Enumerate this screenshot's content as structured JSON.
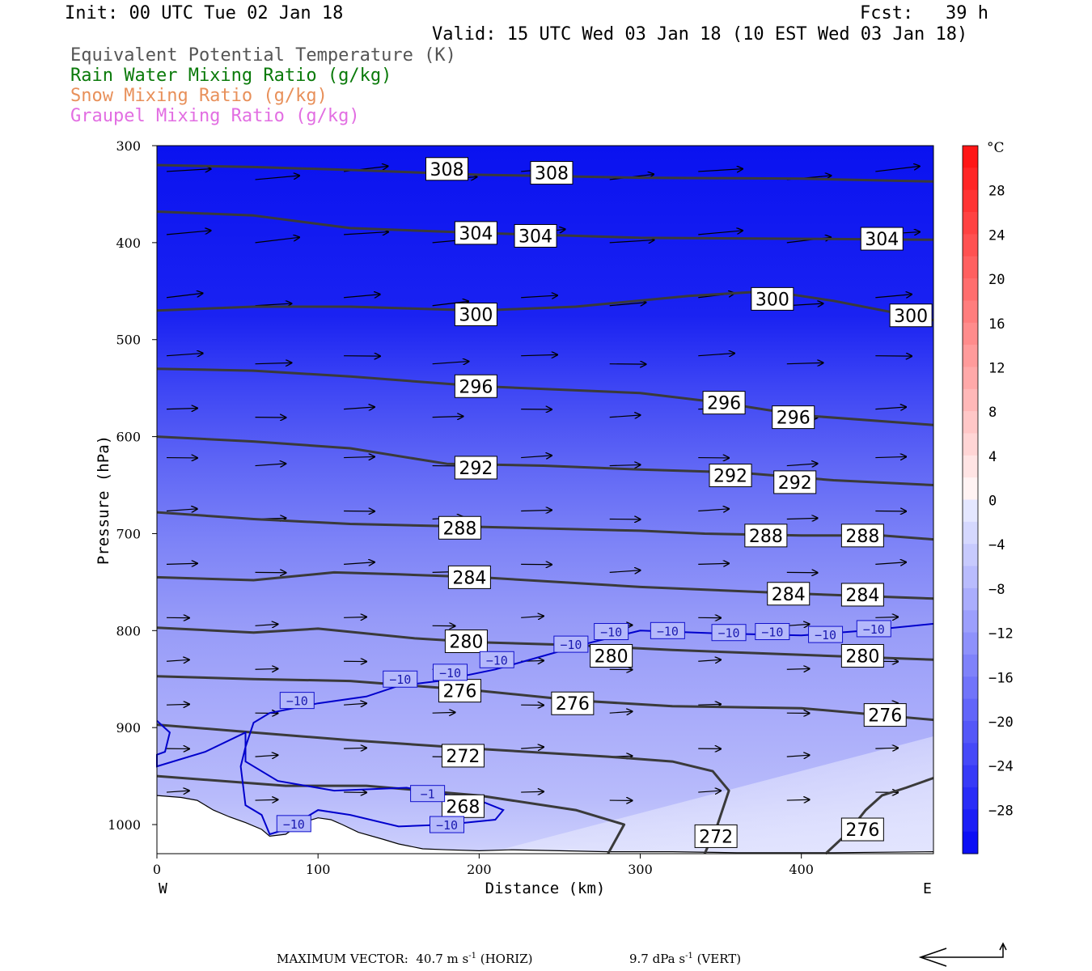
{
  "header": {
    "init": "Init: 00 UTC Tue 02 Jan 18",
    "fcst": "Fcst:   39 h",
    "valid": "Valid: 15 UTC Wed 03 Jan 18 (10 EST Wed 03 Jan 18)"
  },
  "fields": [
    {
      "label": "Equivalent Potential Temperature (K)",
      "color": "#555555"
    },
    {
      "label": "Rain Water Mixing Ratio (g/kg)",
      "color": "#0a7a0a"
    },
    {
      "label": "Snow Mixing Ratio (g/kg)",
      "color": "#e8905a"
    },
    {
      "label": "Graupel Mixing Ratio (g/kg)",
      "color": "#e26ee2"
    }
  ],
  "chart_data": {
    "type": "cross-section",
    "xlabel": "Distance (km)",
    "ylabel": "Pressure (hPa)",
    "xlim": [
      0,
      482
    ],
    "ylim": [
      1030,
      300
    ],
    "y_log_scale": false,
    "x_ticks": [
      0,
      100,
      200,
      300,
      400
    ],
    "y_ticks": [
      300,
      400,
      500,
      600,
      700,
      800,
      900,
      1000
    ],
    "west_label": "W",
    "east_label": "E",
    "colorbar": {
      "unit": "°C",
      "labels": [
        28,
        24,
        20,
        16,
        12,
        8,
        4,
        0,
        -4,
        -8,
        -12,
        -16,
        -20,
        -24,
        -28
      ],
      "range": [
        -32,
        32
      ],
      "fill_note": "temperature shading"
    },
    "theta_e_contours": [
      {
        "value": 308,
        "points": [
          [
            0,
            320
          ],
          [
            60,
            322
          ],
          [
            120,
            325
          ],
          [
            200,
            330
          ],
          [
            300,
            333
          ],
          [
            400,
            334
          ],
          [
            482,
            337
          ]
        ]
      },
      {
        "value": 304,
        "points": [
          [
            0,
            368
          ],
          [
            60,
            372
          ],
          [
            120,
            385
          ],
          [
            200,
            390
          ],
          [
            300,
            395
          ],
          [
            400,
            396
          ],
          [
            482,
            397
          ]
        ]
      },
      {
        "value": 300,
        "points": [
          [
            0,
            470
          ],
          [
            60,
            466
          ],
          [
            120,
            466
          ],
          [
            200,
            470
          ],
          [
            260,
            466
          ],
          [
            330,
            455
          ],
          [
            380,
            450
          ],
          [
            420,
            460
          ],
          [
            482,
            480
          ]
        ]
      },
      {
        "value": 296,
        "points": [
          [
            0,
            530
          ],
          [
            60,
            532
          ],
          [
            120,
            538
          ],
          [
            200,
            548
          ],
          [
            300,
            555
          ],
          [
            350,
            565
          ],
          [
            400,
            578
          ],
          [
            482,
            588
          ]
        ]
      },
      {
        "value": 292,
        "points": [
          [
            0,
            600
          ],
          [
            60,
            605
          ],
          [
            120,
            612
          ],
          [
            180,
            628
          ],
          [
            240,
            630
          ],
          [
            300,
            634
          ],
          [
            360,
            637
          ],
          [
            420,
            645
          ],
          [
            482,
            650
          ]
        ]
      },
      {
        "value": 288,
        "points": [
          [
            0,
            678
          ],
          [
            60,
            685
          ],
          [
            120,
            690
          ],
          [
            200,
            693
          ],
          [
            300,
            697
          ],
          [
            340,
            700
          ],
          [
            400,
            702
          ],
          [
            450,
            702
          ],
          [
            482,
            706
          ]
        ]
      },
      {
        "value": 284,
        "points": [
          [
            0,
            745
          ],
          [
            60,
            748
          ],
          [
            110,
            740
          ],
          [
            150,
            742
          ],
          [
            200,
            745
          ],
          [
            300,
            755
          ],
          [
            400,
            762
          ],
          [
            482,
            767
          ]
        ]
      },
      {
        "value": 280,
        "points": [
          [
            0,
            797
          ],
          [
            60,
            802
          ],
          [
            100,
            798
          ],
          [
            160,
            808
          ],
          [
            200,
            812
          ],
          [
            260,
            815
          ],
          [
            320,
            820
          ],
          [
            400,
            825
          ],
          [
            482,
            830
          ]
        ]
      },
      {
        "value": 276,
        "points": [
          [
            0,
            847
          ],
          [
            60,
            850
          ],
          [
            120,
            852
          ],
          [
            200,
            862
          ],
          [
            260,
            872
          ],
          [
            320,
            878
          ],
          [
            400,
            880
          ],
          [
            482,
            892
          ]
        ]
      },
      {
        "value": 272,
        "points": [
          [
            0,
            897
          ],
          [
            60,
            905
          ],
          [
            120,
            913
          ],
          [
            200,
            922
          ],
          [
            280,
            930
          ],
          [
            320,
            935
          ],
          [
            345,
            945
          ],
          [
            355,
            965
          ],
          [
            348,
            1000
          ],
          [
            340,
            1030
          ]
        ]
      },
      {
        "value": 268,
        "points": [
          [
            0,
            950
          ],
          [
            40,
            955
          ],
          [
            80,
            960
          ],
          [
            130,
            960
          ],
          [
            200,
            970
          ],
          [
            260,
            985
          ],
          [
            290,
            1000
          ],
          [
            280,
            1030
          ]
        ]
      },
      {
        "value": 276,
        "points": [
          [
            415,
            1030
          ],
          [
            428,
            1010
          ],
          [
            440,
            985
          ],
          [
            450,
            970
          ],
          [
            465,
            962
          ],
          [
            482,
            952
          ]
        ]
      }
    ],
    "theta_e_labels": [
      {
        "text": "308",
        "x": 180,
        "p": 324
      },
      {
        "text": "308",
        "x": 245,
        "p": 328
      },
      {
        "text": "304",
        "x": 198,
        "p": 390
      },
      {
        "text": "304",
        "x": 235,
        "p": 393
      },
      {
        "text": "304",
        "x": 450,
        "p": 396
      },
      {
        "text": "300",
        "x": 198,
        "p": 474
      },
      {
        "text": "300",
        "x": 382,
        "p": 458
      },
      {
        "text": "300",
        "x": 468,
        "p": 475
      },
      {
        "text": "296",
        "x": 198,
        "p": 548
      },
      {
        "text": "296",
        "x": 352,
        "p": 565
      },
      {
        "text": "296",
        "x": 395,
        "p": 580
      },
      {
        "text": "292",
        "x": 198,
        "p": 632
      },
      {
        "text": "292",
        "x": 356,
        "p": 640
      },
      {
        "text": "292",
        "x": 396,
        "p": 647
      },
      {
        "text": "288",
        "x": 188,
        "p": 694
      },
      {
        "text": "288",
        "x": 378,
        "p": 702
      },
      {
        "text": "288",
        "x": 438,
        "p": 702
      },
      {
        "text": "284",
        "x": 194,
        "p": 745
      },
      {
        "text": "284",
        "x": 392,
        "p": 762
      },
      {
        "text": "284",
        "x": 438,
        "p": 763
      },
      {
        "text": "280",
        "x": 192,
        "p": 811
      },
      {
        "text": "280",
        "x": 282,
        "p": 826
      },
      {
        "text": "280",
        "x": 438,
        "p": 826
      },
      {
        "text": "276",
        "x": 188,
        "p": 862
      },
      {
        "text": "276",
        "x": 258,
        "p": 875
      },
      {
        "text": "276",
        "x": 452,
        "p": 887
      },
      {
        "text": "272",
        "x": 190,
        "p": 929
      },
      {
        "text": "272",
        "x": 347,
        "p": 1012
      },
      {
        "text": "268",
        "x": 190,
        "p": 981
      },
      {
        "text": "276",
        "x": 438,
        "p": 1005
      }
    ],
    "isotherm_minus10": {
      "value": -10,
      "color": "#0000cc",
      "points": [
        [
          0,
          893
        ],
        [
          8,
          905
        ],
        [
          5,
          925
        ],
        [
          0,
          928
        ],
        [
          0,
          940
        ],
        [
          30,
          925
        ],
        [
          55,
          905
        ],
        [
          55,
          935
        ],
        [
          75,
          955
        ],
        [
          110,
          965
        ],
        [
          155,
          962
        ],
        [
          200,
          975
        ],
        [
          215,
          985
        ],
        [
          210,
          995
        ],
        [
          180,
          1000
        ],
        [
          150,
          1002
        ],
        [
          120,
          990
        ],
        [
          100,
          985
        ],
        [
          80,
          1005
        ],
        [
          70,
          1010
        ],
        [
          65,
          990
        ],
        [
          55,
          980
        ],
        [
          52,
          940
        ],
        [
          55,
          920
        ],
        [
          60,
          895
        ],
        [
          70,
          885
        ],
        [
          100,
          875
        ],
        [
          130,
          868
        ],
        [
          150,
          857
        ],
        [
          175,
          852
        ],
        [
          210,
          840
        ],
        [
          240,
          826
        ],
        [
          270,
          812
        ],
        [
          300,
          800
        ],
        [
          350,
          803
        ],
        [
          400,
          805
        ],
        [
          440,
          800
        ],
        [
          482,
          793
        ]
      ],
      "labels": [
        {
          "text": "−10",
          "x": 87,
          "p": 872
        },
        {
          "text": "−10",
          "x": 151,
          "p": 850
        },
        {
          "text": "−10",
          "x": 182,
          "p": 843
        },
        {
          "text": "−10",
          "x": 211,
          "p": 830
        },
        {
          "text": "−10",
          "x": 257,
          "p": 814
        },
        {
          "text": "−10",
          "x": 282,
          "p": 801
        },
        {
          "text": "−10",
          "x": 317,
          "p": 800
        },
        {
          "text": "−10",
          "x": 355,
          "p": 802
        },
        {
          "text": "−10",
          "x": 382,
          "p": 801
        },
        {
          "text": "−10",
          "x": 415,
          "p": 804
        },
        {
          "text": "−10",
          "x": 445,
          "p": 798
        },
        {
          "text": "−10",
          "x": 180,
          "p": 1000
        },
        {
          "text": "−10",
          "x": 85,
          "p": 999
        },
        {
          "text": "−1",
          "x": 168,
          "p": 968
        }
      ]
    },
    "surface_pressure": [
      [
        0,
        970
      ],
      [
        15,
        972
      ],
      [
        25,
        975
      ],
      [
        35,
        985
      ],
      [
        45,
        992
      ],
      [
        55,
        998
      ],
      [
        65,
        1005
      ],
      [
        70,
        1012
      ],
      [
        80,
        1010
      ],
      [
        90,
        998
      ],
      [
        100,
        993
      ],
      [
        108,
        995
      ],
      [
        115,
        1000
      ],
      [
        125,
        1008
      ],
      [
        140,
        1015
      ],
      [
        150,
        1020
      ],
      [
        165,
        1025
      ],
      [
        180,
        1026
      ],
      [
        200,
        1027
      ],
      [
        220,
        1026
      ],
      [
        250,
        1027
      ],
      [
        280,
        1028
      ],
      [
        320,
        1028
      ],
      [
        360,
        1029
      ],
      [
        420,
        1029
      ],
      [
        482,
        1028
      ]
    ],
    "wind_vectors_note": "horizontal/vertical circulation vectors",
    "max_vector": {
      "text": "MAXIMUM VECTOR:  40.7 m s",
      "sup1": "-1",
      "horiz": " (HORIZ)",
      "vert_value": "9.7 dPa s",
      "sup2": "-1",
      "vert": " (VERT)"
    }
  }
}
